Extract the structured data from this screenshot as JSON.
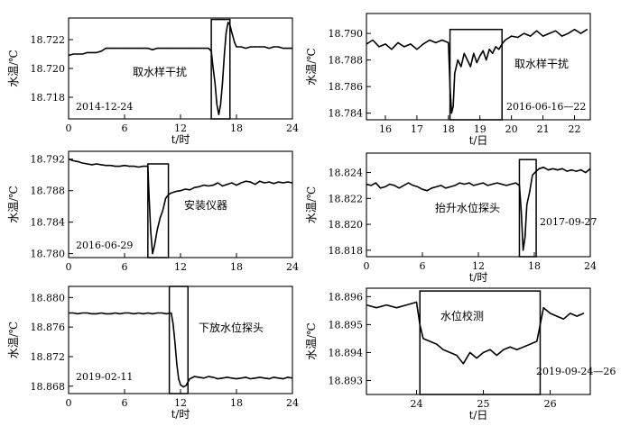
{
  "chart_data": [
    {
      "type": "line",
      "title": "",
      "xlabel": "t/时",
      "ylabel": "水温/℃",
      "xlim": [
        0,
        24
      ],
      "ylim": [
        18.7165,
        18.7235
      ],
      "xticks": [
        0,
        6,
        12,
        18,
        24
      ],
      "yticks": [
        18.718,
        18.72,
        18.722
      ],
      "ytick_labels": [
        "18.718",
        "18.720",
        "18.722"
      ],
      "annotation": "取水样干扰",
      "date_label": "2014-12-24",
      "box": {
        "x0": 15.3,
        "x1": 17.3,
        "y0": 18.7165,
        "y1": 18.7234
      },
      "series": [
        {
          "x": [
            0,
            0.5,
            1,
            1.5,
            2,
            2.5,
            3,
            3.5,
            4,
            4.5,
            5,
            5.5,
            6,
            6.5,
            7,
            7.5,
            8,
            8.5,
            9,
            9.5,
            10,
            10.5,
            11,
            11.5,
            12,
            12.5,
            13,
            13.5,
            14,
            14.5,
            15,
            15.3,
            15.5,
            15.7,
            15.9,
            16.1,
            16.3,
            16.5,
            16.7,
            16.9,
            17.1,
            17.3,
            17.5,
            17.8,
            18,
            18.5,
            19,
            19.5,
            20,
            20.5,
            21,
            21.5,
            22,
            22.5,
            23,
            23.5,
            24
          ],
          "y": [
            18.7209,
            18.721,
            18.721,
            18.721,
            18.7211,
            18.7211,
            18.7211,
            18.7212,
            18.7214,
            18.7214,
            18.7214,
            18.7214,
            18.7214,
            18.7214,
            18.7214,
            18.7214,
            18.7214,
            18.7214,
            18.7213,
            18.7214,
            18.7214,
            18.7214,
            18.7214,
            18.7214,
            18.7214,
            18.7214,
            18.7214,
            18.7214,
            18.7214,
            18.7214,
            18.7214,
            18.7212,
            18.72,
            18.719,
            18.7175,
            18.7168,
            18.7175,
            18.719,
            18.721,
            18.7225,
            18.7232,
            18.723,
            18.7225,
            18.7218,
            18.7215,
            18.7215,
            18.7214,
            18.7215,
            18.7215,
            18.7215,
            18.7215,
            18.7214,
            18.7215,
            18.7215,
            18.7214,
            18.7214,
            18.7214
          ]
        }
      ]
    },
    {
      "type": "line",
      "title": "",
      "xlabel": "t/日",
      "ylabel": "水温/℃",
      "xlim": [
        15.4,
        22.5
      ],
      "ylim": [
        18.7835,
        18.7915
      ],
      "xticks": [
        16,
        17,
        18,
        19,
        20,
        21,
        22
      ],
      "yticks": [
        18.784,
        18.786,
        18.788,
        18.79
      ],
      "ytick_labels": [
        "18.784",
        "18.786",
        "18.788",
        "18.790"
      ],
      "annotation": "取水样干扰",
      "date_label": "2016-06-16—22",
      "box": {
        "x0": 18.05,
        "x1": 19.7,
        "y0": 18.7835,
        "y1": 18.7903
      },
      "series": [
        {
          "x": [
            15.4,
            15.6,
            15.8,
            16,
            16.2,
            16.4,
            16.6,
            16.8,
            17,
            17.2,
            17.4,
            17.6,
            17.8,
            18,
            18.05,
            18.1,
            18.15,
            18.2,
            18.3,
            18.4,
            18.5,
            18.6,
            18.7,
            18.8,
            18.9,
            19,
            19.1,
            19.2,
            19.3,
            19.4,
            19.5,
            19.6,
            19.7,
            19.8,
            20,
            20.2,
            20.4,
            20.6,
            20.8,
            21,
            21.2,
            21.4,
            21.6,
            21.8,
            22,
            22.2,
            22.4
          ],
          "y": [
            18.7892,
            18.7895,
            18.789,
            18.7892,
            18.7888,
            18.7893,
            18.789,
            18.7892,
            18.7888,
            18.7892,
            18.7895,
            18.7893,
            18.7895,
            18.7893,
            18.786,
            18.784,
            18.7845,
            18.787,
            18.788,
            18.7875,
            18.7885,
            18.788,
            18.7875,
            18.7885,
            18.7878,
            18.7883,
            18.7887,
            18.788,
            18.7888,
            18.7885,
            18.789,
            18.7888,
            18.7892,
            18.7895,
            18.7898,
            18.7897,
            18.79,
            18.7898,
            18.7902,
            18.7898,
            18.79,
            18.7902,
            18.7898,
            18.79,
            18.7903,
            18.79,
            18.7903
          ]
        }
      ]
    },
    {
      "type": "line",
      "title": "",
      "xlabel": "",
      "ylabel": "水温/℃",
      "xlim": [
        0,
        24
      ],
      "ylim": [
        18.7795,
        18.793
      ],
      "xticks": [
        0,
        6,
        12,
        18,
        24
      ],
      "yticks": [
        18.78,
        18.784,
        18.788,
        18.792
      ],
      "ytick_labels": [
        "18.780",
        "18.784",
        "18.788",
        "18.792"
      ],
      "annotation": "安装仪器",
      "date_label": "2016-06-29",
      "box": {
        "x0": 8.5,
        "x1": 10.7,
        "y0": 18.7795,
        "y1": 18.7914
      },
      "series": [
        {
          "x": [
            0,
            0.5,
            1,
            1.5,
            2,
            2.5,
            3,
            3.5,
            4,
            4.5,
            5,
            5.5,
            6,
            6.5,
            7,
            7.5,
            8,
            8.5,
            8.6,
            8.8,
            9,
            9.2,
            9.5,
            9.8,
            10.1,
            10.4,
            10.7,
            11,
            11.5,
            12,
            12.5,
            13,
            13.5,
            14,
            14.5,
            15,
            15.5,
            16,
            16.5,
            17,
            17.5,
            18,
            18.5,
            19,
            19.5,
            20,
            20.5,
            21,
            21.5,
            22,
            22.5,
            23,
            23.5,
            24
          ],
          "y": [
            18.792,
            18.7918,
            18.7917,
            18.7915,
            18.7914,
            18.7913,
            18.7914,
            18.7913,
            18.7912,
            18.7912,
            18.7911,
            18.7911,
            18.7912,
            18.7911,
            18.7911,
            18.791,
            18.7911,
            18.7911,
            18.788,
            18.783,
            18.78,
            18.781,
            18.783,
            18.7845,
            18.7855,
            18.787,
            18.7875,
            18.7877,
            18.7879,
            18.788,
            18.7882,
            18.7881,
            18.7884,
            18.7885,
            18.7887,
            18.7886,
            18.7887,
            18.789,
            18.7886,
            18.7888,
            18.789,
            18.7887,
            18.789,
            18.7892,
            18.7891,
            18.7888,
            18.7892,
            18.789,
            18.7891,
            18.7889,
            18.7891,
            18.789,
            18.7891,
            18.789
          ]
        }
      ]
    },
    {
      "type": "line",
      "title": "",
      "xlabel": "t/时",
      "ylabel": "水温/℃",
      "xlim": [
        0,
        24
      ],
      "ylim": [
        18.8175,
        18.8255
      ],
      "xticks": [
        0,
        6,
        12,
        18,
        24
      ],
      "yticks": [
        18.818,
        18.82,
        18.822,
        18.824
      ],
      "ytick_labels": [
        "18.818",
        "18.820",
        "18.822",
        "18.824"
      ],
      "annotation": "抬升水位探头",
      "date_label": "2017-09-27",
      "box": {
        "x0": 16.4,
        "x1": 18.2,
        "y0": 18.8175,
        "y1": 18.825
      },
      "series": [
        {
          "x": [
            0,
            0.5,
            1,
            1.5,
            2,
            2.5,
            3,
            3.5,
            4,
            4.5,
            5,
            5.5,
            6,
            6.5,
            7,
            7.5,
            8,
            8.5,
            9,
            9.5,
            10,
            10.5,
            11,
            11.5,
            12,
            12.5,
            13,
            13.5,
            14,
            14.5,
            15,
            15.5,
            16,
            16.4,
            16.6,
            16.8,
            17,
            17.2,
            17.5,
            17.8,
            18.2,
            18.5,
            19,
            19.5,
            20,
            20.5,
            21,
            21.5,
            22,
            22.5,
            23,
            23.5,
            24
          ],
          "y": [
            18.8231,
            18.823,
            18.8232,
            18.8228,
            18.8229,
            18.8231,
            18.823,
            18.8228,
            18.823,
            18.8232,
            18.823,
            18.8229,
            18.8227,
            18.8226,
            18.8228,
            18.8229,
            18.823,
            18.8228,
            18.8229,
            18.823,
            18.8232,
            18.8231,
            18.8232,
            18.823,
            18.8231,
            18.8232,
            18.823,
            18.8231,
            18.8232,
            18.8231,
            18.823,
            18.8231,
            18.8232,
            18.823,
            18.821,
            18.818,
            18.819,
            18.8215,
            18.8225,
            18.8238,
            18.8241,
            18.8243,
            18.8244,
            18.8242,
            18.8243,
            18.8242,
            18.8243,
            18.8241,
            18.8242,
            18.8241,
            18.8242,
            18.824,
            18.8243
          ]
        }
      ]
    },
    {
      "type": "line",
      "title": "",
      "xlabel": "t/时",
      "ylabel": "水温/℃",
      "xlim": [
        0,
        24
      ],
      "ylim": [
        18.867,
        18.8815
      ],
      "xticks": [
        0,
        6,
        12,
        18,
        24
      ],
      "yticks": [
        18.868,
        18.872,
        18.876,
        18.88
      ],
      "ytick_labels": [
        "18.868",
        "18.872",
        "18.876",
        "18.880"
      ],
      "annotation": "下放水位探头",
      "date_label": "2019-02-11",
      "box": {
        "x0": 10.8,
        "x1": 12.8,
        "y0": 18.867,
        "y1": 18.8815
      },
      "series": [
        {
          "x": [
            0,
            0.5,
            1,
            1.5,
            2,
            2.5,
            3,
            3.5,
            4,
            4.5,
            5,
            5.5,
            6,
            6.5,
            7,
            7.5,
            8,
            8.5,
            9,
            9.5,
            10,
            10.5,
            11,
            11.2,
            11.4,
            11.6,
            11.8,
            12,
            12.3,
            12.6,
            12.8,
            13,
            13.5,
            14,
            14.5,
            15,
            15.5,
            16,
            16.5,
            17,
            17.5,
            18,
            18.5,
            19,
            19.5,
            20,
            20.5,
            21,
            21.5,
            22,
            22.5,
            23,
            23.5,
            24
          ],
          "y": [
            18.8779,
            18.8779,
            18.8778,
            18.8779,
            18.8779,
            18.8778,
            18.8778,
            18.8779,
            18.8778,
            18.8778,
            18.8779,
            18.8778,
            18.8779,
            18.8779,
            18.8778,
            18.8779,
            18.8778,
            18.8779,
            18.8778,
            18.8779,
            18.8779,
            18.8778,
            18.8779,
            18.8765,
            18.874,
            18.871,
            18.869,
            18.8682,
            18.8679,
            18.8681,
            18.8686,
            18.869,
            18.8693,
            18.8692,
            18.8691,
            18.8693,
            18.8692,
            18.869,
            18.8691,
            18.8692,
            18.8691,
            18.869,
            18.8691,
            18.8692,
            18.869,
            18.8691,
            18.8692,
            18.8691,
            18.869,
            18.8692,
            18.8691,
            18.869,
            18.8692,
            18.8691
          ]
        }
      ]
    },
    {
      "type": "line",
      "title": "",
      "xlabel": "t/日",
      "ylabel": "水温/℃",
      "xlim": [
        23.25,
        26.6
      ],
      "ylim": [
        18.8925,
        18.8963
      ],
      "xticks": [
        24,
        25,
        26
      ],
      "yticks": [
        18.893,
        18.894,
        18.895,
        18.896
      ],
      "ytick_labels": [
        "18.893",
        "18.894",
        "18.895",
        "18.896"
      ],
      "annotation": "水位校测",
      "date_label": "2019-09-24—26",
      "box": {
        "x0": 24.05,
        "x1": 25.85,
        "y0": 18.8925,
        "y1": 18.8962
      },
      "series": [
        {
          "x": [
            23.25,
            23.4,
            23.55,
            23.7,
            23.85,
            24,
            24.05,
            24.1,
            24.2,
            24.3,
            24.4,
            24.5,
            24.6,
            24.7,
            24.8,
            24.9,
            25,
            25.1,
            25.2,
            25.3,
            25.4,
            25.5,
            25.6,
            25.7,
            25.8,
            25.85,
            25.9,
            26,
            26.1,
            26.2,
            26.3,
            26.4,
            26.5
          ],
          "y": [
            18.8957,
            18.8956,
            18.8957,
            18.8956,
            18.8957,
            18.8958,
            18.895,
            18.8945,
            18.8944,
            18.8943,
            18.8941,
            18.894,
            18.8939,
            18.8936,
            18.894,
            18.8938,
            18.894,
            18.8941,
            18.8939,
            18.8941,
            18.8942,
            18.8941,
            18.8942,
            18.8943,
            18.8944,
            18.895,
            18.8956,
            18.8954,
            18.8953,
            18.8952,
            18.8954,
            18.8953,
            18.8954
          ]
        }
      ]
    }
  ]
}
